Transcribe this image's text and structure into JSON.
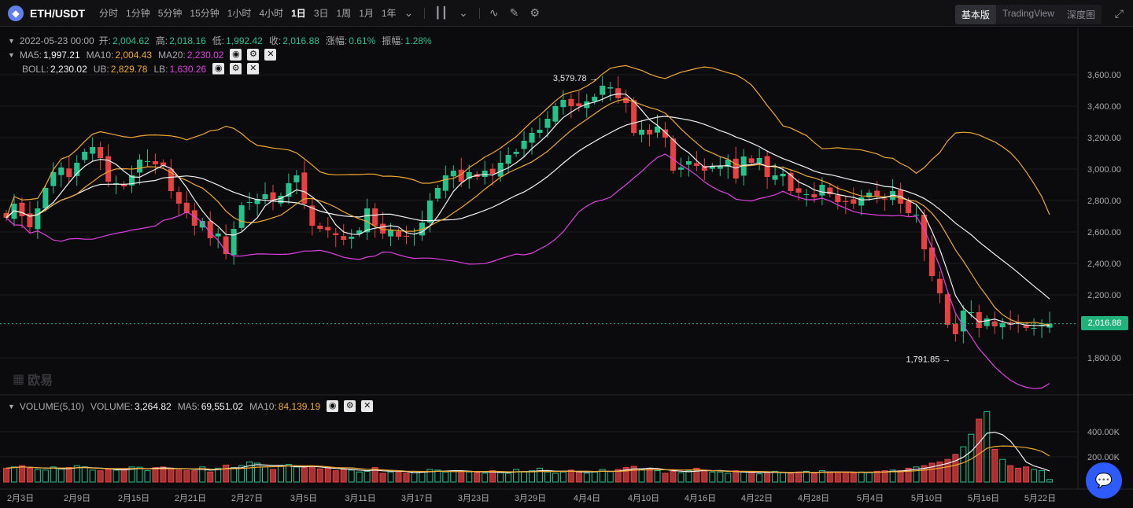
{
  "toolbar": {
    "pair": "ETH/USDT",
    "timeframes": [
      "分时",
      "1分钟",
      "5分钟",
      "15分钟",
      "1小时",
      "4小时",
      "1日",
      "3日",
      "1周",
      "1月",
      "1年"
    ],
    "active_timeframe": "1日",
    "views": [
      "基本版",
      "TradingView",
      "深度图"
    ],
    "active_view": "基本版"
  },
  "ohlc": {
    "date": "2022-05-23 00:00",
    "open_label": "开:",
    "open": "2,004.62",
    "high_label": "高:",
    "high": "2,018.16",
    "low_label": "低:",
    "low": "1,992.42",
    "close_label": "收:",
    "close": "2,016.88",
    "change_label": "涨幅:",
    "change": "0.61%",
    "amp_label": "振幅:",
    "amp": "1.28%"
  },
  "ma": {
    "ma5_label": "MA5:",
    "ma5": "1,997.21",
    "ma10_label": "MA10:",
    "ma10": "2,004.43",
    "ma20_label": "MA20:",
    "ma20": "2,230.02"
  },
  "boll": {
    "boll_label": "BOLL:",
    "boll": "2,230.02",
    "ub_label": "UB:",
    "ub": "2,829.78",
    "lb_label": "LB:",
    "lb": "1,630.26"
  },
  "volume": {
    "name": "VOLUME(5,10)",
    "vol_label": "VOLUME:",
    "vol": "3,264.82",
    "ma5_label": "MA5:",
    "ma5": "69,551.02",
    "ma10_label": "MA10:",
    "ma10": "84,139.19"
  },
  "last_price": "2,016.88",
  "watermark": "欧易",
  "colors": {
    "up": "#26c28b",
    "down": "#e84142",
    "ma5": "#f2f2f2",
    "ma10": "#f0a830",
    "ma20": "#e040e0"
  },
  "chart_data": {
    "type": "candlestick",
    "price_axis_ticks": [
      3600,
      3400,
      3200,
      3000,
      2800,
      2600,
      2400,
      2200,
      1800
    ],
    "price_axis_labels": [
      "3,600.00",
      "3,400.00",
      "3,200.00",
      "3,000.00",
      "2,800.00",
      "2,600.00",
      "2,400.00",
      "2,200.00",
      "1,800.00"
    ],
    "volume_axis_ticks": [
      400000,
      200000
    ],
    "volume_axis_labels": [
      "400.00K",
      "200.00K"
    ],
    "x_labels": [
      "2月3日",
      "2月9日",
      "2月15日",
      "2月21日",
      "2月27日",
      "3月5日",
      "3月11日",
      "3月17日",
      "3月23日",
      "3月29日",
      "4月4日",
      "4月10日",
      "4月16日",
      "4月22日",
      "4月28日",
      "5月4日",
      "5月10日",
      "5月16日",
      "5月22日"
    ],
    "annotations": [
      {
        "label": "3,579.78",
        "value": 3579.78
      },
      {
        "label": "1,791.85",
        "value": 1791.85
      }
    ],
    "closes": [
      2690,
      2780,
      2700,
      2630,
      2750,
      2880,
      2980,
      3010,
      2950,
      3040,
      3110,
      3140,
      3070,
      2920,
      2910,
      2890,
      2960,
      3060,
      3050,
      3030,
      3020,
      2860,
      2780,
      2720,
      2640,
      2670,
      2560,
      2590,
      2460,
      2620,
      2770,
      2790,
      2810,
      2840,
      2800,
      2830,
      2910,
      2960,
      2780,
      2640,
      2620,
      2610,
      2580,
      2550,
      2570,
      2610,
      2750,
      2640,
      2590,
      2610,
      2570,
      2570,
      2590,
      2660,
      2800,
      2880,
      2960,
      2990,
      2920,
      2980,
      2950,
      2990,
      2970,
      3040,
      3090,
      3110,
      3180,
      3230,
      3250,
      3320,
      3400,
      3440,
      3400,
      3400,
      3430,
      3460,
      3530,
      3520,
      3450,
      3420,
      3230,
      3250,
      3220,
      3270,
      3200,
      2990,
      3010,
      3050,
      3020,
      2990,
      3020,
      3020,
      3060,
      2940,
      3080,
      3040,
      3070,
      2950,
      2960,
      2970,
      2860,
      2850,
      2840,
      2820,
      2900,
      2840,
      2790,
      2790,
      2780,
      2820,
      2850,
      2830,
      2810,
      2860,
      2780,
      2720,
      2710,
      2490,
      2320,
      2210,
      2010,
      1950,
      2100,
      2090,
      1990,
      2050,
      2000,
      2020,
      2010,
      2020,
      1990,
      1990,
      2010,
      2017
    ],
    "volumes": [
      110000,
      120000,
      130000,
      110000,
      100000,
      95000,
      120000,
      105000,
      115000,
      130000,
      120000,
      95000,
      90000,
      100000,
      95000,
      105000,
      120000,
      118000,
      90000,
      115000,
      120000,
      110000,
      95000,
      90000,
      90000,
      120000,
      80000,
      110000,
      135000,
      115000,
      130000,
      160000,
      150000,
      120000,
      100000,
      130000,
      140000,
      120000,
      115000,
      120000,
      105000,
      110000,
      90000,
      100000,
      95000,
      80000,
      85000,
      115000,
      70000,
      80000,
      80000,
      70000,
      75000,
      85000,
      100000,
      95000,
      80000,
      90000,
      85000,
      80000,
      75000,
      70000,
      90000,
      75000,
      70000,
      100000,
      80000,
      90000,
      110000,
      80000,
      70000,
      80000,
      95000,
      85000,
      70000,
      80000,
      100000,
      85000,
      100000,
      115000,
      125000,
      100000,
      110000,
      90000,
      70000,
      85000,
      75000,
      90000,
      110000,
      95000,
      80000,
      80000,
      70000,
      90000,
      80000,
      75000,
      65000,
      80000,
      85000,
      75000,
      70000,
      80000,
      85000,
      70000,
      90000,
      75000,
      80000,
      80000,
      70000,
      80000,
      75000,
      85000,
      90000,
      95000,
      90000,
      110000,
      120000,
      130000,
      150000,
      160000,
      180000,
      220000,
      280000,
      380000,
      500000,
      560000,
      260000,
      180000,
      130000,
      110000,
      120000,
      100000,
      90000,
      20000
    ]
  }
}
